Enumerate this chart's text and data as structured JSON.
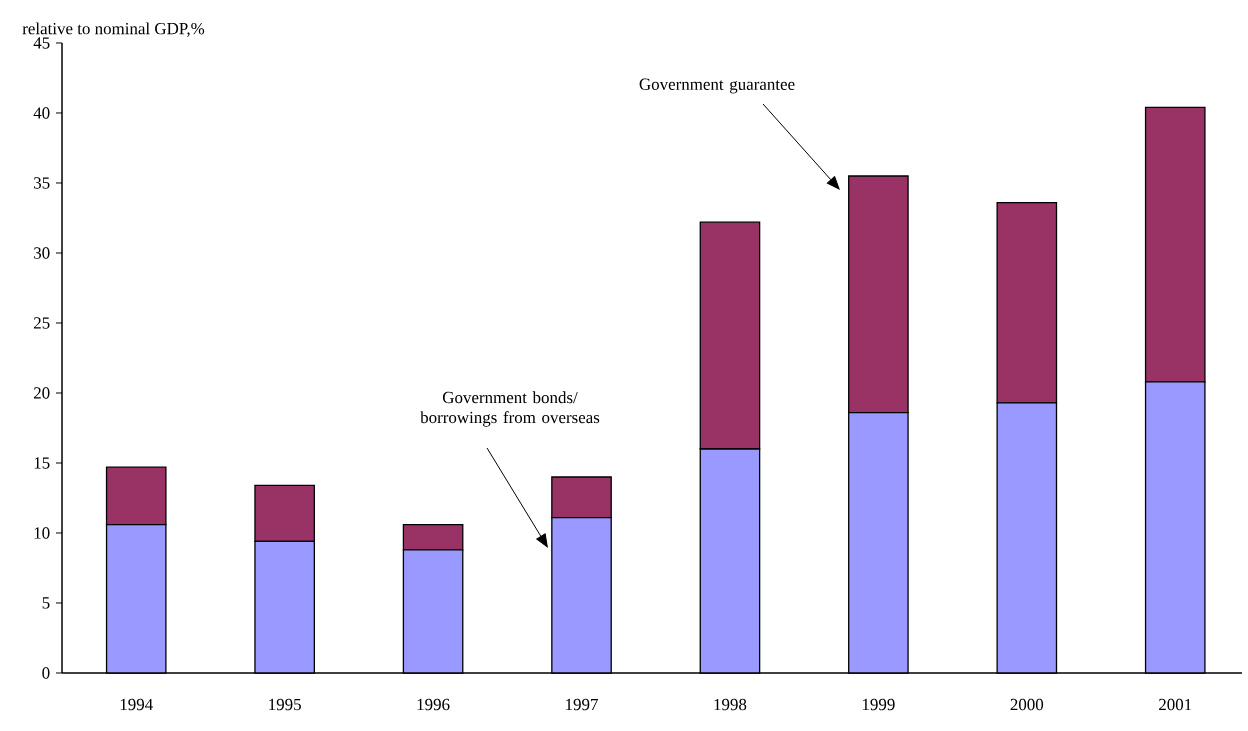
{
  "chart_data": {
    "type": "bar",
    "stacked": true,
    "title": "relative to nominal GDP,%",
    "categories": [
      "1994",
      "1995",
      "1996",
      "1997",
      "1998",
      "1999",
      "2000",
      "2001"
    ],
    "series": [
      {
        "color": "#9999ff",
        "values": [
          10.6,
          9.4,
          8.8,
          11.1,
          16.0,
          18.6,
          19.3,
          20.8
        ]
      },
      {
        "color": "#993366",
        "values": [
          4.1,
          4.0,
          1.8,
          2.9,
          16.2,
          16.9,
          14.3,
          19.6
        ]
      }
    ],
    "ylim": [
      0,
      45
    ],
    "yticks": [
      0,
      5,
      10,
      15,
      20,
      25,
      30,
      35,
      40,
      45
    ],
    "annotations": [
      "Government guarantee",
      "Government bonds/ borrowings from overseas"
    ]
  }
}
